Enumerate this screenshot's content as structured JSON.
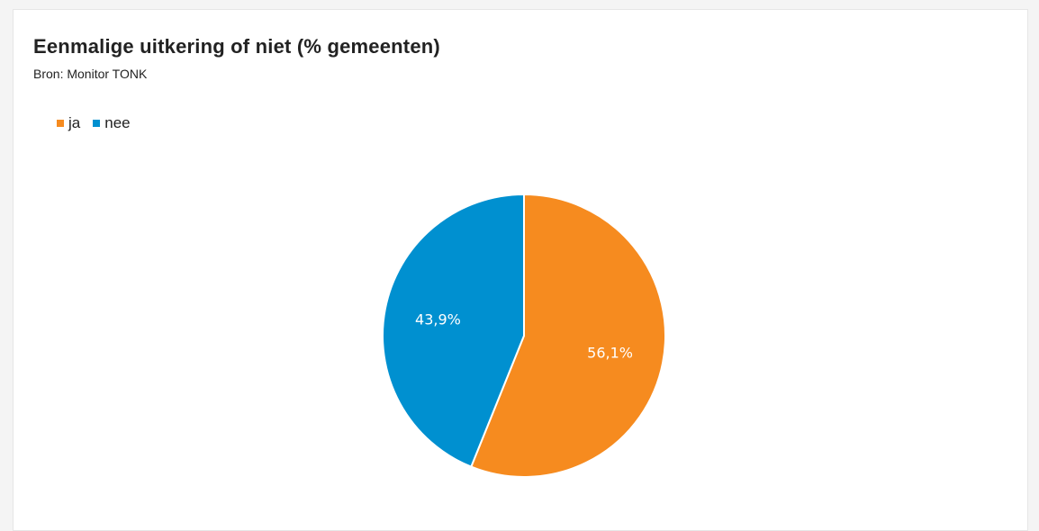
{
  "chart_data": {
    "type": "pie",
    "title": "Eenmalige uitkering of niet (% gemeenten)",
    "subtitle": "Bron: Monitor TONK",
    "legend_position": "top-left",
    "slices": [
      {
        "name": "ja",
        "value": 56.1,
        "label": "56,1%",
        "color": "#f68b1f"
      },
      {
        "name": "nee",
        "value": 43.9,
        "label": "43,9%",
        "color": "#0090d0"
      }
    ]
  }
}
